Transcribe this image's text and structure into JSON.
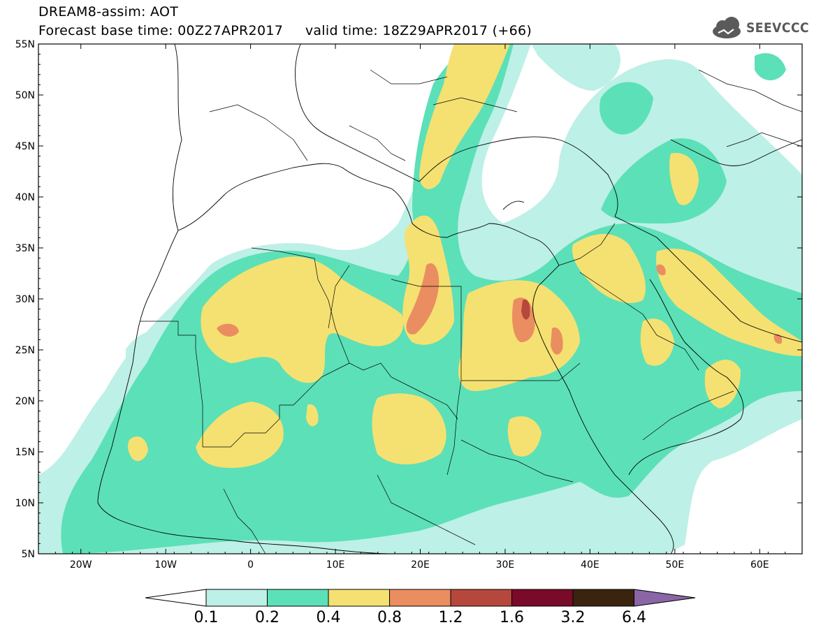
{
  "header": {
    "line1": "DREAM8-assim: AOT",
    "line2": "Forecast base time: 00Z27APR2017     valid time: 18Z29APR2017 (+66)",
    "logo_text": "SEEVCCC"
  },
  "axes": {
    "lat_labels": [
      "55N",
      "50N",
      "45N",
      "40N",
      "35N",
      "30N",
      "25N",
      "20N",
      "15N",
      "10N",
      "5N"
    ],
    "lat_values": [
      55,
      50,
      45,
      40,
      35,
      30,
      25,
      20,
      15,
      10,
      5
    ],
    "lon_labels": [
      "20W",
      "10W",
      "0",
      "10E",
      "20E",
      "30E",
      "40E",
      "50E",
      "60E"
    ],
    "lon_values": [
      -20,
      -10,
      0,
      10,
      20,
      30,
      40,
      50,
      60
    ],
    "lon_range": [
      -25,
      65
    ],
    "lat_range": [
      5,
      55
    ]
  },
  "colorbar": {
    "labels": [
      "0.1",
      "0.2",
      "0.4",
      "0.8",
      "1.2",
      "1.6",
      "3.2",
      "6.4"
    ],
    "colors": [
      "#ffffff",
      "#bdf0e6",
      "#5ce0b8",
      "#f5e171",
      "#ea8d60",
      "#b5473c",
      "#7a0a2a",
      "#3a2410",
      "#8a66a6"
    ]
  },
  "colors": {
    "c1": "#bdf0e6",
    "c2": "#5ce0b8",
    "c3": "#f5e171",
    "c4": "#ea8d60",
    "c5": "#b5473c",
    "border": "#000000"
  }
}
